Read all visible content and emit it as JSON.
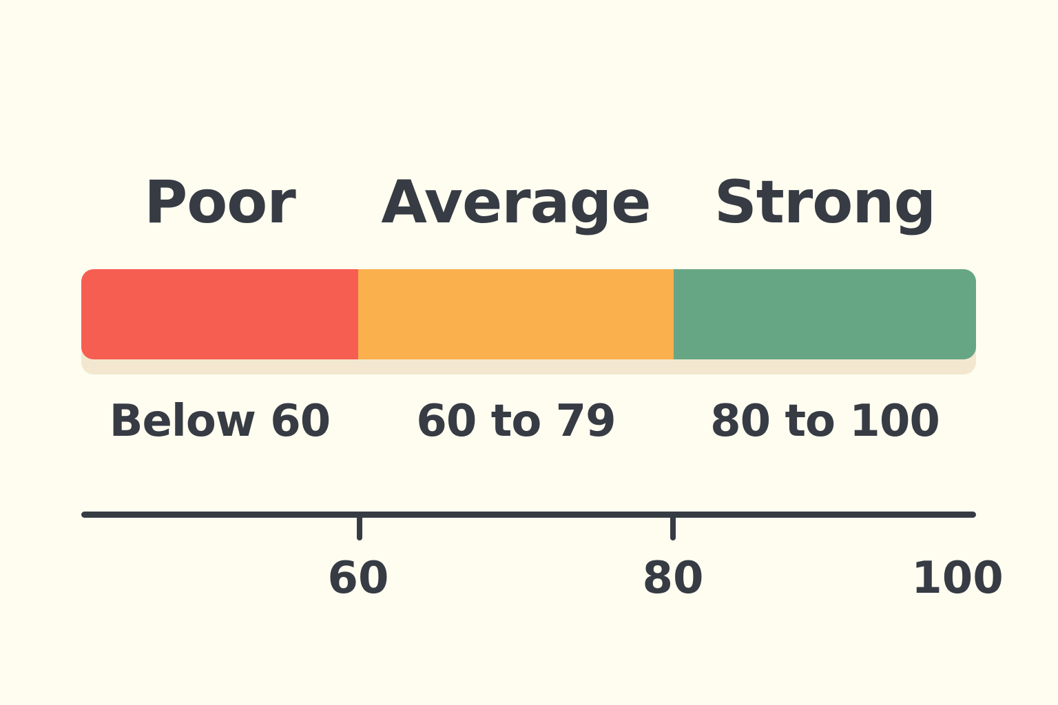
{
  "categories": [
    {
      "label": "Poor",
      "range_label": "Below 60",
      "color": "#F65E51",
      "from": 0,
      "to": 60
    },
    {
      "label": "Average",
      "range_label": "60 to 79",
      "color": "#FAB04D",
      "from": 60,
      "to": 80
    },
    {
      "label": "Strong",
      "range_label": "80 to 100",
      "color": "#67A684",
      "from": 80,
      "to": 100
    }
  ],
  "axis": {
    "ticks": [
      {
        "value": 60,
        "label": "60"
      },
      {
        "value": 80,
        "label": "80"
      },
      {
        "value": 100,
        "label": "100"
      }
    ]
  },
  "colors": {
    "background": "#FEFDF0",
    "text": "#363B44",
    "bar_shadow": "#F3E8CF"
  }
}
